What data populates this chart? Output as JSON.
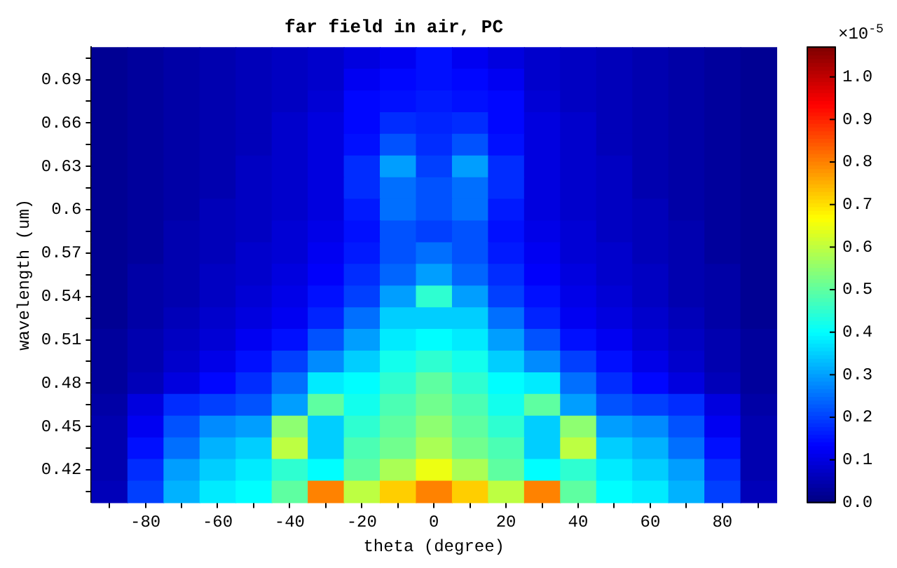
{
  "chart_data": {
    "type": "heatmap",
    "title": "far field in air, PC",
    "xlabel": "theta (degree)",
    "ylabel": "wavelength (um)",
    "clabel": "×10$^{-5}$",
    "categories": [
      null,
      "-80",
      null,
      "-60",
      null,
      "-40",
      null,
      "-20",
      null,
      "0",
      null,
      "20",
      null,
      "40",
      null,
      "60",
      null,
      "80",
      null
    ],
    "y_categories": [
      null,
      "0.69",
      null,
      "0.66",
      null,
      "0.63",
      null,
      "0.6",
      null,
      "0.57",
      null,
      "0.54",
      null,
      "0.51",
      null,
      "0.48",
      null,
      "0.45",
      null,
      "0.42",
      null
    ],
    "cells": [
      [
        0.02,
        0.03,
        0.04,
        0.05,
        0.06,
        0.07,
        0.08,
        0.1,
        0.12,
        0.15,
        0.12,
        0.1,
        0.08,
        0.07,
        0.06,
        0.05,
        0.04,
        0.03,
        0.02
      ],
      [
        0.02,
        0.03,
        0.04,
        0.05,
        0.06,
        0.07,
        0.08,
        0.12,
        0.14,
        0.15,
        0.14,
        0.12,
        0.08,
        0.07,
        0.06,
        0.05,
        0.04,
        0.03,
        0.02
      ],
      [
        0.02,
        0.03,
        0.04,
        0.05,
        0.06,
        0.07,
        0.09,
        0.14,
        0.15,
        0.16,
        0.15,
        0.14,
        0.09,
        0.07,
        0.06,
        0.05,
        0.04,
        0.03,
        0.02
      ],
      [
        0.02,
        0.03,
        0.04,
        0.05,
        0.06,
        0.08,
        0.1,
        0.14,
        0.18,
        0.17,
        0.18,
        0.14,
        0.1,
        0.08,
        0.06,
        0.05,
        0.04,
        0.03,
        0.02
      ],
      [
        0.02,
        0.03,
        0.04,
        0.05,
        0.06,
        0.08,
        0.1,
        0.15,
        0.22,
        0.18,
        0.22,
        0.15,
        0.1,
        0.08,
        0.06,
        0.05,
        0.04,
        0.03,
        0.02
      ],
      [
        0.02,
        0.03,
        0.04,
        0.05,
        0.07,
        0.08,
        0.1,
        0.18,
        0.3,
        0.2,
        0.3,
        0.18,
        0.1,
        0.08,
        0.07,
        0.05,
        0.04,
        0.03,
        0.02
      ],
      [
        0.02,
        0.03,
        0.04,
        0.05,
        0.07,
        0.08,
        0.1,
        0.18,
        0.25,
        0.22,
        0.25,
        0.18,
        0.1,
        0.08,
        0.07,
        0.05,
        0.04,
        0.03,
        0.02
      ],
      [
        0.02,
        0.03,
        0.04,
        0.06,
        0.07,
        0.08,
        0.1,
        0.16,
        0.25,
        0.22,
        0.25,
        0.16,
        0.1,
        0.08,
        0.07,
        0.06,
        0.04,
        0.03,
        0.02
      ],
      [
        0.02,
        0.03,
        0.05,
        0.06,
        0.07,
        0.09,
        0.11,
        0.15,
        0.22,
        0.2,
        0.22,
        0.15,
        0.11,
        0.09,
        0.07,
        0.06,
        0.05,
        0.03,
        0.02
      ],
      [
        0.02,
        0.03,
        0.05,
        0.06,
        0.08,
        0.09,
        0.12,
        0.16,
        0.22,
        0.25,
        0.22,
        0.16,
        0.12,
        0.09,
        0.08,
        0.06,
        0.05,
        0.03,
        0.02
      ],
      [
        0.02,
        0.04,
        0.05,
        0.07,
        0.08,
        0.1,
        0.13,
        0.18,
        0.24,
        0.3,
        0.24,
        0.18,
        0.13,
        0.1,
        0.08,
        0.07,
        0.05,
        0.04,
        0.02
      ],
      [
        0.02,
        0.04,
        0.05,
        0.07,
        0.09,
        0.11,
        0.15,
        0.2,
        0.3,
        0.45,
        0.3,
        0.2,
        0.15,
        0.11,
        0.09,
        0.07,
        0.05,
        0.04,
        0.02
      ],
      [
        0.02,
        0.04,
        0.06,
        0.08,
        0.1,
        0.12,
        0.17,
        0.25,
        0.35,
        0.35,
        0.35,
        0.25,
        0.17,
        0.12,
        0.1,
        0.08,
        0.06,
        0.04,
        0.02
      ],
      [
        0.03,
        0.05,
        0.07,
        0.09,
        0.12,
        0.15,
        0.22,
        0.3,
        0.38,
        0.4,
        0.38,
        0.3,
        0.22,
        0.15,
        0.12,
        0.09,
        0.07,
        0.05,
        0.03
      ],
      [
        0.03,
        0.05,
        0.08,
        0.11,
        0.15,
        0.2,
        0.28,
        0.35,
        0.42,
        0.45,
        0.42,
        0.35,
        0.28,
        0.2,
        0.15,
        0.11,
        0.08,
        0.05,
        0.03
      ],
      [
        0.03,
        0.06,
        0.1,
        0.14,
        0.18,
        0.25,
        0.38,
        0.4,
        0.45,
        0.5,
        0.45,
        0.4,
        0.38,
        0.25,
        0.18,
        0.14,
        0.1,
        0.06,
        0.03
      ],
      [
        0.04,
        0.1,
        0.18,
        0.2,
        0.22,
        0.3,
        0.5,
        0.42,
        0.48,
        0.52,
        0.48,
        0.42,
        0.5,
        0.3,
        0.22,
        0.2,
        0.18,
        0.1,
        0.04
      ],
      [
        0.05,
        0.12,
        0.22,
        0.28,
        0.3,
        0.55,
        0.35,
        0.45,
        0.5,
        0.55,
        0.5,
        0.45,
        0.35,
        0.55,
        0.3,
        0.28,
        0.22,
        0.12,
        0.05
      ],
      [
        0.05,
        0.15,
        0.25,
        0.32,
        0.35,
        0.6,
        0.35,
        0.48,
        0.52,
        0.58,
        0.52,
        0.48,
        0.35,
        0.6,
        0.35,
        0.32,
        0.25,
        0.15,
        0.05
      ],
      [
        0.05,
        0.18,
        0.3,
        0.35,
        0.38,
        0.45,
        0.4,
        0.5,
        0.58,
        0.65,
        0.58,
        0.5,
        0.4,
        0.45,
        0.38,
        0.35,
        0.3,
        0.18,
        0.05
      ],
      [
        0.06,
        0.2,
        0.32,
        0.38,
        0.4,
        0.5,
        0.8,
        0.6,
        0.72,
        0.8,
        0.72,
        0.6,
        0.8,
        0.5,
        0.4,
        0.38,
        0.32,
        0.2,
        0.06
      ]
    ],
    "clim": [
      0,
      1.07
    ],
    "cticks": [
      {
        "value": 0,
        "label": "0.0"
      },
      0.1,
      0.2,
      0.3,
      0.4,
      0.5,
      0.6,
      0.7,
      0.8,
      0.9,
      {
        "value": 1,
        "label": "1.0"
      }
    ]
  }
}
